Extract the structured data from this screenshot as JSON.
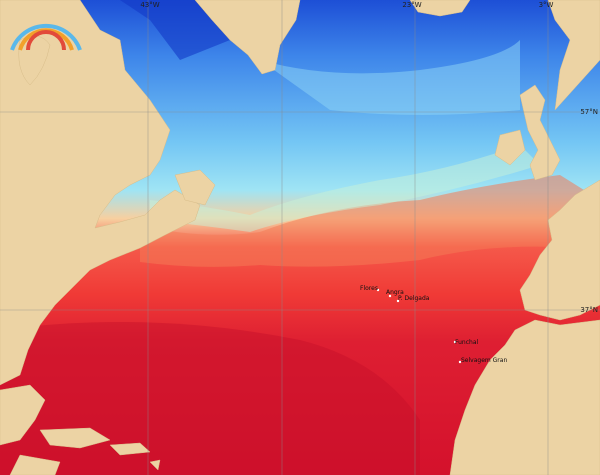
{
  "map": {
    "graticule_labels": {
      "top": [
        "43°W",
        "23°W",
        "3°W"
      ],
      "right": [
        "57°N",
        "37°N"
      ]
    },
    "places": [
      {
        "label": "Flores"
      },
      {
        "label": "Angra"
      },
      {
        "label": "P. Delgada"
      },
      {
        "label": "Funchal"
      },
      {
        "label": "Selvagem Gran"
      }
    ]
  }
}
